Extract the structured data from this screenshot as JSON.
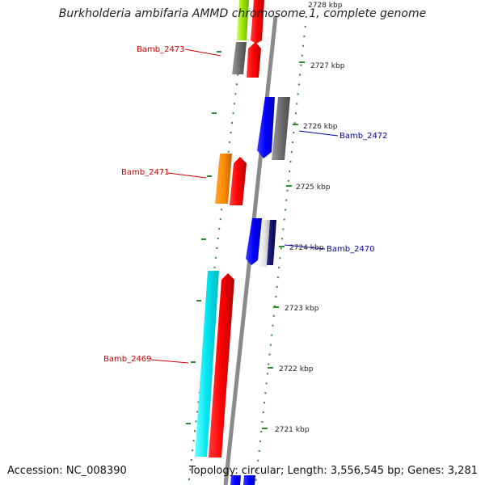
{
  "title": "Burkholderia ambifaria AMMD chromosome 1, complete genome",
  "footer": {
    "accession": "Accession: NC_008390",
    "summary": "Topology: circular; Length: 3,556,545 bp; Genes: 3,281"
  },
  "colors": {
    "backbone": "#8a8a8a",
    "tick": "#2e8b2e",
    "label_reverse": "#cc0000",
    "label_forward": "#0000aa"
  },
  "scale_labels": [
    "2728 kbp",
    "2727 kbp",
    "2726 kbp",
    "2725 kbp",
    "2724 kbp",
    "2723 kbp",
    "2722 kbp",
    "2721 kbp"
  ],
  "gene_labels": [
    {
      "text": "Bamb_2473",
      "strand": "reverse"
    },
    {
      "text": "Bamb_2472",
      "strand": "forward"
    },
    {
      "text": "Bamb_2471",
      "strand": "reverse"
    },
    {
      "text": "Bamb_2470",
      "strand": "forward"
    },
    {
      "text": "Bamb_2469",
      "strand": "reverse"
    }
  ]
}
